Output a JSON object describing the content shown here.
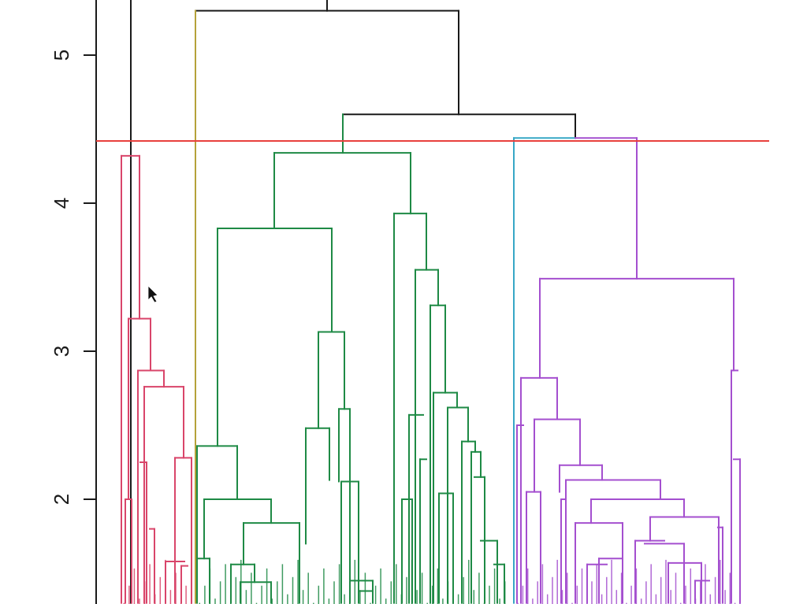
{
  "chart_data": {
    "type": "dendrogram",
    "title": "",
    "xlabel": "",
    "ylabel": "",
    "ylim": [
      1.3,
      5.4
    ],
    "y_ticks": [
      2,
      3,
      4,
      5
    ],
    "y_tick_labels": [
      "2",
      "3",
      "4",
      "5"
    ],
    "cut_height": 4.42,
    "colors": {
      "root": "#1a1a1a",
      "cut_line": "#e8403c",
      "cluster_red": "#d9456a",
      "cluster_olive": "#b5a23a",
      "cluster_green": "#1e8a45",
      "cluster_cyan": "#37a7c6",
      "cluster_purple": "#a44fcf"
    },
    "clusters": [
      {
        "id": "red",
        "color": "#d9456a",
        "merge_height": 4.32,
        "leaves": 20
      },
      {
        "id": "olive",
        "color": "#b5a23a",
        "merge_height": 5.3,
        "leaves": 1
      },
      {
        "id": "green",
        "color": "#1e8a45",
        "merge_height": 4.34,
        "leaves": 80
      },
      {
        "id": "cyan",
        "color": "#37a7c6",
        "merge_height": 4.44,
        "leaves": 1
      },
      {
        "id": "purple",
        "color": "#a44fcf",
        "merge_height": 4.44,
        "leaves": 60
      }
    ],
    "segments": [
      {
        "c": "root",
        "x": 166,
        "y0": 1.3,
        "y1": 5.6
      },
      {
        "c": "root",
        "x1": 248,
        "x2": 415,
        "y": 5.3
      },
      {
        "c": "root",
        "x": 415,
        "y0": 5.3,
        "y1": 5.6
      },
      {
        "c": "root",
        "x1": 415,
        "x2": 582,
        "y": 5.3
      },
      {
        "c": "root",
        "x": 582,
        "y0": 4.6,
        "y1": 5.3
      },
      {
        "c": "root",
        "x1": 435,
        "x2": 730,
        "y": 4.6
      },
      {
        "c": "root",
        "x": 730,
        "y0": 4.44,
        "y1": 4.6
      },
      {
        "c": "cluster_olive",
        "x": 248,
        "y0": 1.3,
        "y1": 5.3
      },
      {
        "c": "cluster_green",
        "x": 435,
        "y0": 4.34,
        "y1": 4.6
      },
      {
        "c": "cluster_green",
        "x1": 348,
        "x2": 521,
        "y": 4.34
      },
      {
        "c": "cluster_green",
        "x": 348,
        "y0": 3.83,
        "y1": 4.34
      },
      {
        "c": "cluster_green",
        "x": 521,
        "y0": 3.93,
        "y1": 4.34
      },
      {
        "c": "cluster_green",
        "x1": 276,
        "x2": 421,
        "y": 3.83
      },
      {
        "c": "cluster_green",
        "x": 276,
        "y0": 2.36,
        "y1": 3.83
      },
      {
        "c": "cluster_green",
        "x": 421,
        "y0": 3.13,
        "y1": 3.83
      },
      {
        "c": "cluster_green",
        "x1": 250,
        "x2": 301,
        "y": 2.36
      },
      {
        "c": "cluster_green",
        "x": 250,
        "y0": 1.3,
        "y1": 2.36
      },
      {
        "c": "cluster_green",
        "x": 301,
        "y0": 2.0,
        "y1": 2.36
      },
      {
        "c": "cluster_green",
        "x1": 259,
        "x2": 344,
        "y": 2.0
      },
      {
        "c": "cluster_green",
        "x": 259,
        "y0": 1.6,
        "y1": 2.0
      },
      {
        "c": "cluster_green",
        "x": 344,
        "y0": 1.84,
        "y1": 2.0
      },
      {
        "c": "cluster_green",
        "x1": 250,
        "x2": 266,
        "y": 1.6
      },
      {
        "c": "cluster_green",
        "x": 266,
        "y0": 1.3,
        "y1": 1.6
      },
      {
        "c": "cluster_green",
        "x1": 309,
        "x2": 380,
        "y": 1.84
      },
      {
        "c": "cluster_green",
        "x": 309,
        "y0": 1.56,
        "y1": 1.84
      },
      {
        "c": "cluster_green",
        "x": 380,
        "y0": 1.3,
        "y1": 1.84
      },
      {
        "c": "cluster_green",
        "x1": 293,
        "x2": 323,
        "y": 1.56
      },
      {
        "c": "cluster_green",
        "x": 293,
        "y0": 1.3,
        "y1": 1.56
      },
      {
        "c": "cluster_green",
        "x": 323,
        "y0": 1.44,
        "y1": 1.56
      },
      {
        "c": "cluster_green",
        "x1": 305,
        "x2": 344,
        "y": 1.44
      },
      {
        "c": "cluster_green",
        "x": 305,
        "y0": 1.3,
        "y1": 1.44
      },
      {
        "c": "cluster_green",
        "x": 344,
        "y0": 1.3,
        "y1": 1.44
      },
      {
        "c": "cluster_green",
        "x1": 404,
        "x2": 437,
        "y": 3.13
      },
      {
        "c": "cluster_green",
        "x": 404,
        "y0": 2.48,
        "y1": 3.13
      },
      {
        "c": "cluster_green",
        "x": 437,
        "y0": 2.61,
        "y1": 3.13
      },
      {
        "c": "cluster_green",
        "x1": 388,
        "x2": 418,
        "y": 2.48
      },
      {
        "c": "cluster_green",
        "x": 388,
        "y0": 1.7,
        "y1": 2.48
      },
      {
        "c": "cluster_green",
        "x": 418,
        "y0": 2.13,
        "y1": 2.48
      },
      {
        "c": "cluster_green",
        "x1": 430,
        "x2": 444,
        "y": 2.61
      },
      {
        "c": "cluster_green",
        "x": 430,
        "y0": 2.12,
        "y1": 2.61
      },
      {
        "c": "cluster_green",
        "x": 444,
        "y0": 1.3,
        "y1": 2.61
      },
      {
        "c": "cluster_green",
        "x1": 433,
        "x2": 455,
        "y": 2.12
      },
      {
        "c": "cluster_green",
        "x": 433,
        "y0": 1.3,
        "y1": 2.12
      },
      {
        "c": "cluster_green",
        "x": 455,
        "y0": 1.3,
        "y1": 2.12
      },
      {
        "c": "cluster_green",
        "x1": 444,
        "x2": 473,
        "y": 1.45
      },
      {
        "c": "cluster_green",
        "x": 473,
        "y0": 1.3,
        "y1": 1.45
      },
      {
        "c": "cluster_green",
        "x1": 456,
        "x2": 473,
        "y": 1.38
      },
      {
        "c": "cluster_green",
        "x1": 500,
        "x2": 541,
        "y": 3.93
      },
      {
        "c": "cluster_green",
        "x": 500,
        "y0": 1.3,
        "y1": 3.93
      },
      {
        "c": "cluster_green",
        "x": 541,
        "y0": 3.55,
        "y1": 3.93
      },
      {
        "c": "cluster_green",
        "x1": 527,
        "x2": 556,
        "y": 3.55
      },
      {
        "c": "cluster_green",
        "x": 527,
        "y0": 1.3,
        "y1": 3.55
      },
      {
        "c": "cluster_green",
        "x": 556,
        "y0": 3.31,
        "y1": 3.55
      },
      {
        "c": "cluster_green",
        "x1": 546,
        "x2": 565,
        "y": 3.31
      },
      {
        "c": "cluster_green",
        "x": 546,
        "y0": 1.3,
        "y1": 3.31
      },
      {
        "c": "cluster_green",
        "x": 565,
        "y0": 2.72,
        "y1": 3.31
      },
      {
        "c": "cluster_green",
        "x1": 550,
        "x2": 580,
        "y": 2.72
      },
      {
        "c": "cluster_green",
        "x": 550,
        "y0": 1.3,
        "y1": 2.72
      },
      {
        "c": "cluster_green",
        "x": 580,
        "y0": 2.62,
        "y1": 2.72
      },
      {
        "c": "cluster_green",
        "x1": 568,
        "x2": 594,
        "y": 2.62
      },
      {
        "c": "cluster_green",
        "x": 568,
        "y0": 1.3,
        "y1": 2.62
      },
      {
        "c": "cluster_green",
        "x": 594,
        "y0": 2.39,
        "y1": 2.62
      },
      {
        "c": "cluster_green",
        "x1": 586,
        "x2": 603,
        "y": 2.39
      },
      {
        "c": "cluster_green",
        "x": 586,
        "y0": 1.3,
        "y1": 2.39
      },
      {
        "c": "cluster_green",
        "x": 603,
        "y0": 2.32,
        "y1": 2.39
      },
      {
        "c": "cluster_green",
        "x1": 598,
        "x2": 610,
        "y": 2.32
      },
      {
        "c": "cluster_green",
        "x": 598,
        "y0": 1.3,
        "y1": 2.32
      },
      {
        "c": "cluster_green",
        "x": 610,
        "y0": 2.15,
        "y1": 2.32
      },
      {
        "c": "cluster_green",
        "x1": 602,
        "x2": 615,
        "y": 2.15
      },
      {
        "c": "cluster_green",
        "x": 615,
        "y0": 1.3,
        "y1": 2.15
      },
      {
        "c": "cluster_green",
        "x1": 610,
        "x2": 631,
        "y": 1.72
      },
      {
        "c": "cluster_green",
        "x": 631,
        "y0": 1.3,
        "y1": 1.72
      },
      {
        "c": "cluster_green",
        "x1": 627,
        "x2": 640,
        "y": 1.56
      },
      {
        "c": "cluster_green",
        "x": 640,
        "y0": 1.3,
        "y1": 1.56
      },
      {
        "c": "cluster_green",
        "x1": 519,
        "x2": 537,
        "y": 2.57
      },
      {
        "c": "cluster_green",
        "x": 519,
        "y0": 1.3,
        "y1": 2.57
      },
      {
        "c": "cluster_green",
        "x1": 533,
        "x2": 541,
        "y": 2.27
      },
      {
        "c": "cluster_green",
        "x": 533,
        "y0": 1.3,
        "y1": 2.27
      },
      {
        "c": "cluster_green",
        "x1": 557,
        "x2": 575,
        "y": 2.04
      },
      {
        "c": "cluster_green",
        "x": 557,
        "y0": 1.3,
        "y1": 2.04
      },
      {
        "c": "cluster_green",
        "x": 575,
        "y0": 1.3,
        "y1": 2.04
      },
      {
        "c": "cluster_green",
        "x1": 510,
        "x2": 523,
        "y": 2.0
      },
      {
        "c": "cluster_green",
        "x": 510,
        "y0": 1.3,
        "y1": 2.0
      },
      {
        "c": "cluster_green",
        "x": 523,
        "y0": 1.3,
        "y1": 2.0
      },
      {
        "c": "cluster_cyan",
        "x": 652,
        "y0": 1.3,
        "y1": 4.44
      },
      {
        "c": "cluster_cyan",
        "x1": 652,
        "x2": 730,
        "y": 4.44
      },
      {
        "c": "cluster_purple",
        "x1": 730,
        "x2": 808,
        "y": 4.44
      },
      {
        "c": "cluster_purple",
        "x": 808,
        "y0": 3.49,
        "y1": 4.44
      },
      {
        "c": "cluster_purple",
        "x1": 685,
        "x2": 931,
        "y": 3.49
      },
      {
        "c": "cluster_purple",
        "x": 685,
        "y0": 2.82,
        "y1": 3.49
      },
      {
        "c": "cluster_purple",
        "x": 931,
        "y0": 2.87,
        "y1": 3.49
      },
      {
        "c": "cluster_purple",
        "x1": 661,
        "x2": 707,
        "y": 2.82
      },
      {
        "c": "cluster_purple",
        "x": 661,
        "y0": 1.3,
        "y1": 2.82
      },
      {
        "c": "cluster_purple",
        "x": 707,
        "y0": 2.54,
        "y1": 2.82
      },
      {
        "c": "cluster_purple",
        "x1": 678,
        "x2": 736,
        "y": 2.54
      },
      {
        "c": "cluster_purple",
        "x": 678,
        "y0": 2.05,
        "y1": 2.54
      },
      {
        "c": "cluster_purple",
        "x": 736,
        "y0": 2.23,
        "y1": 2.54
      },
      {
        "c": "cluster_purple",
        "x1": 668,
        "x2": 686,
        "y": 2.05
      },
      {
        "c": "cluster_purple",
        "x": 668,
        "y0": 1.3,
        "y1": 2.05
      },
      {
        "c": "cluster_purple",
        "x": 686,
        "y0": 1.3,
        "y1": 2.05
      },
      {
        "c": "cluster_purple",
        "x1": 710,
        "x2": 764,
        "y": 2.23
      },
      {
        "c": "cluster_purple",
        "x": 710,
        "y0": 2.05,
        "y1": 2.23
      },
      {
        "c": "cluster_purple",
        "x": 764,
        "y0": 2.13,
        "y1": 2.23
      },
      {
        "c": "cluster_purple",
        "x1": 718,
        "x2": 838,
        "y": 2.13
      },
      {
        "c": "cluster_purple",
        "x": 718,
        "y0": 1.3,
        "y1": 2.13
      },
      {
        "c": "cluster_purple",
        "x": 838,
        "y0": 2.0,
        "y1": 2.13
      },
      {
        "c": "cluster_purple",
        "x1": 750,
        "x2": 868,
        "y": 2.0
      },
      {
        "c": "cluster_purple",
        "x": 750,
        "y0": 1.84,
        "y1": 2.0
      },
      {
        "c": "cluster_purple",
        "x": 868,
        "y0": 1.88,
        "y1": 2.0
      },
      {
        "c": "cluster_purple",
        "x1": 730,
        "x2": 790,
        "y": 1.84
      },
      {
        "c": "cluster_purple",
        "x": 730,
        "y0": 1.3,
        "y1": 1.84
      },
      {
        "c": "cluster_purple",
        "x": 790,
        "y0": 1.3,
        "y1": 1.84
      },
      {
        "c": "cluster_purple",
        "x1": 825,
        "x2": 912,
        "y": 1.88
      },
      {
        "c": "cluster_purple",
        "x": 825,
        "y0": 1.72,
        "y1": 1.88
      },
      {
        "c": "cluster_purple",
        "x": 912,
        "y0": 1.3,
        "y1": 1.88
      },
      {
        "c": "cluster_purple",
        "x1": 806,
        "x2": 843,
        "y": 1.72
      },
      {
        "c": "cluster_purple",
        "x": 806,
        "y0": 1.3,
        "y1": 1.72
      },
      {
        "c": "cluster_purple",
        "x1": 818,
        "x2": 868,
        "y": 1.7
      },
      {
        "c": "cluster_purple",
        "x": 868,
        "y0": 1.3,
        "y1": 1.7
      },
      {
        "c": "cluster_purple",
        "x1": 848,
        "x2": 890,
        "y": 1.57
      },
      {
        "c": "cluster_purple",
        "x": 848,
        "y0": 1.3,
        "y1": 1.57
      },
      {
        "c": "cluster_purple",
        "x": 890,
        "y0": 1.3,
        "y1": 1.57
      },
      {
        "c": "cluster_purple",
        "x1": 760,
        "x2": 790,
        "y": 1.6
      },
      {
        "c": "cluster_purple",
        "x": 760,
        "y0": 1.3,
        "y1": 1.6
      },
      {
        "c": "cluster_purple",
        "x1": 745,
        "x2": 770,
        "y": 1.56
      },
      {
        "c": "cluster_purple",
        "x": 745,
        "y0": 1.3,
        "y1": 1.56
      },
      {
        "c": "cluster_purple",
        "x1": 882,
        "x2": 900,
        "y": 1.45
      },
      {
        "c": "cluster_purple",
        "x": 882,
        "y0": 1.3,
        "y1": 1.45
      },
      {
        "c": "cluster_purple",
        "x1": 928,
        "x2": 936,
        "y": 2.87
      },
      {
        "c": "cluster_purple",
        "x": 928,
        "y0": 1.3,
        "y1": 2.87
      },
      {
        "c": "cluster_purple",
        "x1": 931,
        "x2": 939,
        "y": 2.27
      },
      {
        "c": "cluster_purple",
        "x": 939,
        "y0": 1.3,
        "y1": 2.27
      },
      {
        "c": "cluster_purple",
        "x1": 911,
        "x2": 917,
        "y": 1.81
      },
      {
        "c": "cluster_purple",
        "x": 917,
        "y0": 1.3,
        "y1": 1.81
      },
      {
        "c": "cluster_purple",
        "x1": 712,
        "x2": 716,
        "y": 2.0
      },
      {
        "c": "cluster_purple",
        "x": 712,
        "y0": 1.3,
        "y1": 2.0
      },
      {
        "c": "cluster_purple",
        "x1": 656,
        "x2": 664,
        "y": 2.5
      },
      {
        "c": "cluster_purple",
        "x": 656,
        "y0": 1.3,
        "y1": 2.5
      },
      {
        "c": "cluster_red",
        "x1": 154,
        "x2": 177,
        "y": 4.32
      },
      {
        "c": "cluster_red",
        "x": 154,
        "y0": 1.3,
        "y1": 4.32
      },
      {
        "c": "cluster_red",
        "x": 177,
        "y0": 3.22,
        "y1": 4.32
      },
      {
        "c": "cluster_red",
        "x1": 163,
        "x2": 191,
        "y": 3.22
      },
      {
        "c": "cluster_red",
        "x": 163,
        "y0": 2.0,
        "y1": 3.22
      },
      {
        "c": "cluster_red",
        "x": 191,
        "y0": 2.87,
        "y1": 3.22
      },
      {
        "c": "cluster_red",
        "x1": 159,
        "x2": 167,
        "y": 2.0
      },
      {
        "c": "cluster_red",
        "x": 159,
        "y0": 1.3,
        "y1": 2.0
      },
      {
        "c": "cluster_red",
        "x": 167,
        "y0": 1.3,
        "y1": 2.0
      },
      {
        "c": "cluster_red",
        "x1": 175,
        "x2": 208,
        "y": 2.87
      },
      {
        "c": "cluster_red",
        "x": 175,
        "y0": 1.3,
        "y1": 2.87
      },
      {
        "c": "cluster_red",
        "x": 208,
        "y0": 2.76,
        "y1": 2.87
      },
      {
        "c": "cluster_red",
        "x1": 183,
        "x2": 233,
        "y": 2.76
      },
      {
        "c": "cluster_red",
        "x": 183,
        "y0": 1.3,
        "y1": 2.76
      },
      {
        "c": "cluster_red",
        "x": 233,
        "y0": 2.28,
        "y1": 2.76
      },
      {
        "c": "cluster_red",
        "x1": 222,
        "x2": 243,
        "y": 2.28
      },
      {
        "c": "cluster_red",
        "x": 222,
        "y0": 1.3,
        "y1": 2.28
      },
      {
        "c": "cluster_red",
        "x": 243,
        "y0": 1.3,
        "y1": 2.28
      },
      {
        "c": "cluster_red",
        "x1": 178,
        "x2": 186,
        "y": 2.25
      },
      {
        "c": "cluster_red",
        "x": 186,
        "y0": 1.3,
        "y1": 2.25
      },
      {
        "c": "cluster_red",
        "x1": 210,
        "x2": 234,
        "y": 1.58
      },
      {
        "c": "cluster_red",
        "x": 210,
        "y0": 1.3,
        "y1": 1.58
      },
      {
        "c": "cluster_red",
        "x1": 230,
        "x2": 238,
        "y": 1.55
      },
      {
        "c": "cluster_red",
        "x": 230,
        "y0": 1.3,
        "y1": 1.55
      },
      {
        "c": "cluster_red",
        "x1": 190,
        "x2": 196,
        "y": 1.8
      },
      {
        "c": "cluster_red",
        "x": 196,
        "y0": 1.3,
        "y1": 1.8
      }
    ]
  }
}
